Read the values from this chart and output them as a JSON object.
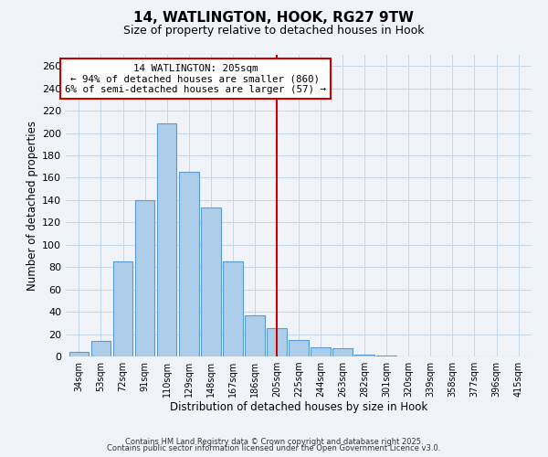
{
  "title": "14, WATLINGTON, HOOK, RG27 9TW",
  "subtitle": "Size of property relative to detached houses in Hook",
  "xlabel": "Distribution of detached houses by size in Hook",
  "ylabel": "Number of detached properties",
  "categories": [
    "34sqm",
    "53sqm",
    "72sqm",
    "91sqm",
    "110sqm",
    "129sqm",
    "148sqm",
    "167sqm",
    "186sqm",
    "205sqm",
    "225sqm",
    "244sqm",
    "263sqm",
    "282sqm",
    "301sqm",
    "320sqm",
    "339sqm",
    "358sqm",
    "377sqm",
    "396sqm",
    "415sqm"
  ],
  "bar_heights": [
    4,
    14,
    85,
    140,
    209,
    165,
    133,
    85,
    37,
    25,
    15,
    8,
    7,
    2,
    1,
    0,
    0,
    0,
    0,
    0,
    0
  ],
  "bar_color": "#aecde8",
  "bar_edge_color": "#5b9bd5",
  "background_color": "#f0f4f8",
  "grid_color": "#c8d8e8",
  "vline_x_index": 9,
  "vline_color": "#cc0000",
  "annotation_line1": "14 WATLINGTON: 205sqm",
  "annotation_line2": "← 94% of detached houses are smaller (860)",
  "annotation_line3": "6% of semi-detached houses are larger (57) →",
  "annotation_box_color": "#ffffff",
  "annotation_box_edge_color": "#cc0000",
  "ylim": [
    0,
    270
  ],
  "yticks": [
    0,
    20,
    40,
    60,
    80,
    100,
    120,
    140,
    160,
    180,
    200,
    220,
    240,
    260
  ],
  "footer_line1": "Contains HM Land Registry data © Crown copyright and database right 2025.",
  "footer_line2": "Contains public sector information licensed under the Open Government Licence v3.0."
}
